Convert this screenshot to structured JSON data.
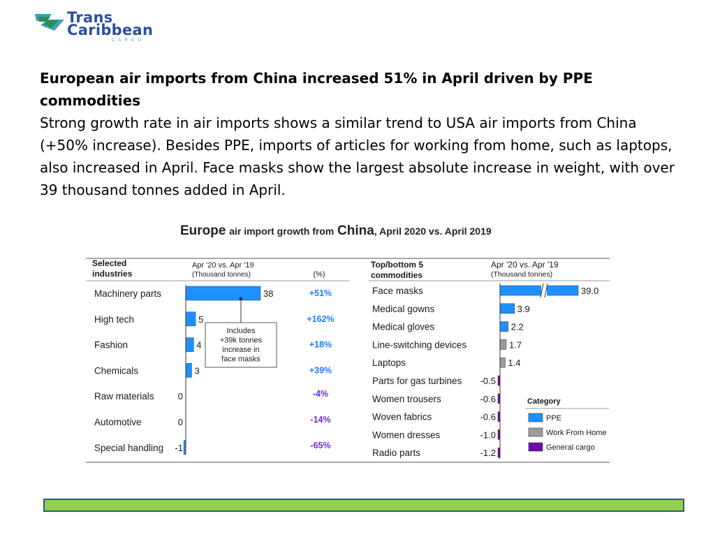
{
  "logo": {
    "line1": "Trans",
    "line2": "Caribbean",
    "line3": "CARGO"
  },
  "headline": {
    "bold": "European air imports from China increased 51% in April driven by PPE commodities",
    "body": "Strong growth rate in air imports shows a similar trend to USA air imports from China (+50% increase). Besides PPE, imports of articles for working from home, such as laptops, also increased in April. Face masks show the largest absolute increase in weight, with over 39 thousand tonnes added in April."
  },
  "chart_title": {
    "region": "Europe",
    "mid": "air import growth from",
    "country": "China",
    "tail": ", April 2020 vs. April 2019"
  },
  "colors": {
    "ppe": "#1e90ff",
    "wfh": "#9b9b9b",
    "general": "#6a0dad",
    "pct": "#6a2bd9",
    "ppe_pct": "#1e7bff",
    "bottom_bar": "#92d050"
  },
  "chart_data": [
    {
      "type": "bar",
      "orientation": "horizontal",
      "header_left": [
        "Selected",
        "industries"
      ],
      "header_mid": [
        "Apr '20 vs. Apr '19",
        "(Thousand tonnes)"
      ],
      "header_pct": "(%)",
      "categories": [
        "Machinery parts",
        "High tech",
        "Fashion",
        "Chemicals",
        "Raw materials",
        "Automotive",
        "Special handling"
      ],
      "values": [
        38,
        5,
        4,
        3,
        0,
        0,
        -1
      ],
      "value_labels": [
        "38",
        "5",
        "4",
        "3",
        "0",
        "0",
        "-1"
      ],
      "percent_labels": [
        "+51%",
        "+162%",
        "+18%",
        "+39%",
        "-4%",
        "-14%",
        "-65%"
      ],
      "annotation": [
        "Includes",
        "+39k tonnes",
        "increase in",
        "face masks"
      ]
    },
    {
      "type": "bar",
      "orientation": "horizontal",
      "header_left": [
        "Top/bottom 5",
        "commodities"
      ],
      "header_mid": [
        "Apr '20 vs. Apr '19",
        "(Thousand tonnes)"
      ],
      "categories": [
        "Face masks",
        "Medical gowns",
        "Medical gloves",
        "Line-switching devices",
        "Laptops",
        "Parts for gas turbines",
        "Women trousers",
        "Woven fabrics",
        "Women dresses",
        "Radio parts"
      ],
      "values": [
        39.0,
        3.9,
        2.2,
        1.7,
        1.4,
        -0.5,
        -0.6,
        -0.6,
        -1.0,
        -1.2
      ],
      "value_labels": [
        "39.0",
        "3.9",
        "2.2",
        "1.7",
        "1.4",
        "-0.5",
        "-0.6",
        "-0.6",
        "-1.0",
        "-1.2"
      ],
      "category_groups": [
        "PPE",
        "PPE",
        "PPE",
        "Work From Home",
        "Work From Home",
        "General cargo",
        "General cargo",
        "General cargo",
        "General cargo",
        "General cargo"
      ],
      "axis_break": true,
      "legend": {
        "title": "Category",
        "items": [
          "PPE",
          "Work From Home",
          "General cargo"
        ],
        "placement": "bottom-right"
      }
    }
  ]
}
